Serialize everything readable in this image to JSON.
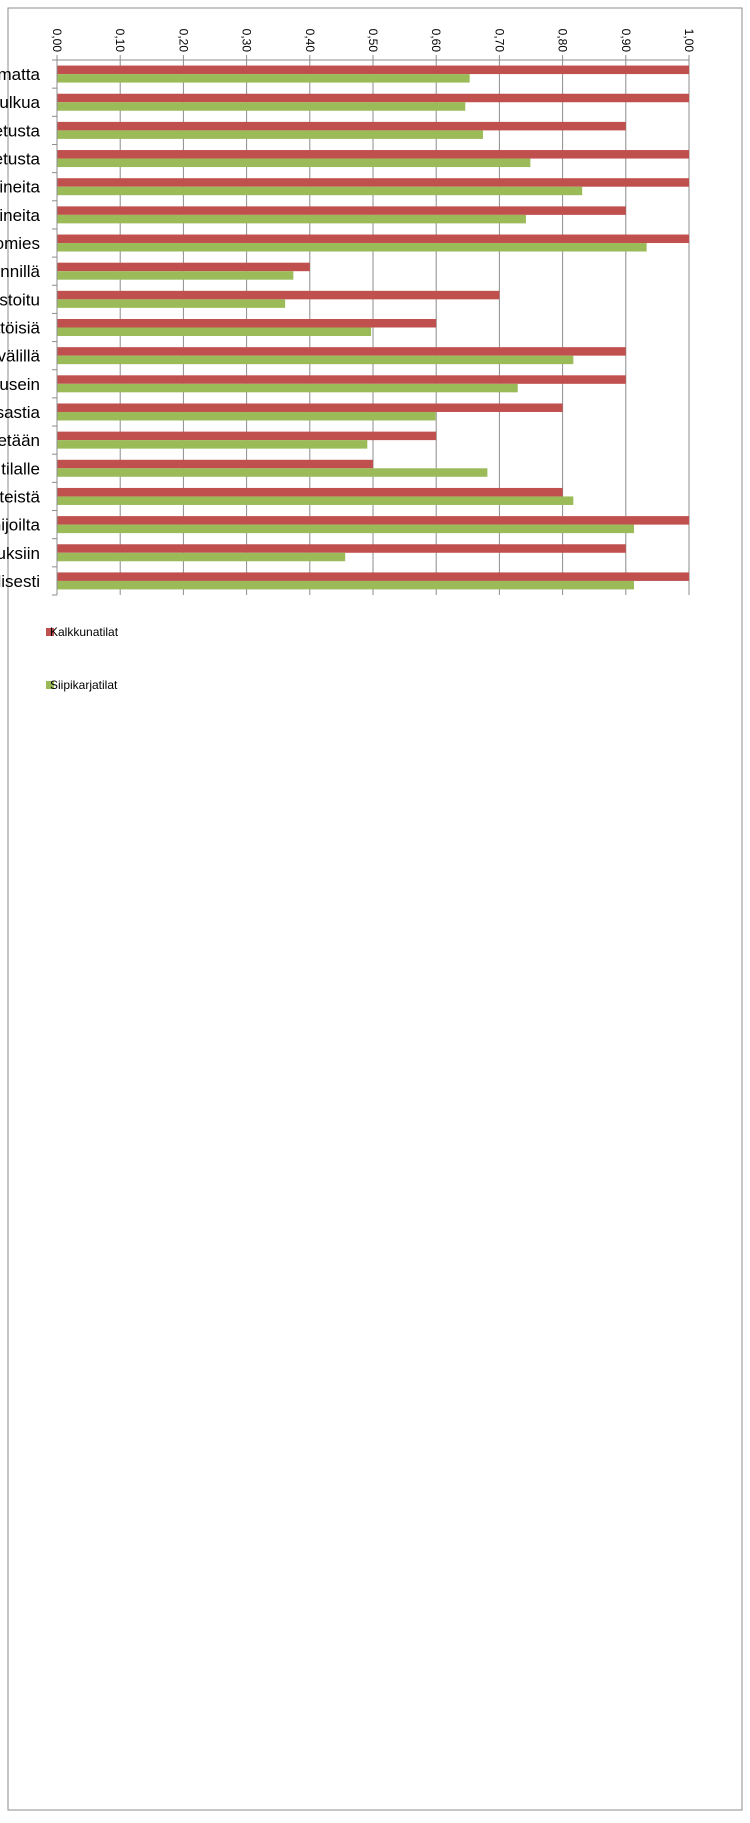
{
  "chart_data": {
    "type": "bar",
    "orientation": "rotated-90-clockwise",
    "grid": true,
    "legend_position": "right",
    "ylim": [
      0,
      1
    ],
    "yticks": [
      "0,00",
      "0,10",
      "0,20",
      "0,30",
      "0,40",
      "0,50",
      "0,60",
      "0,70",
      "0,80",
      "0,90",
      "1,00"
    ],
    "categories": [
      "Tautisulku eli kulkueste, jonka yli ei mennä vaatteita ja jalkineita vaihtamatta",
      "Kaikki eläintilaan menevät ihmiset käyttävät tautisulkua",
      "Tilan oma väki käyttää eläintiloissa suojavaatetusta",
      "Vieraat käyttävät tilan tarjoamaa suojavaatetusta",
      "Tilan oma väki käyttää eläintiloissa erillisiä vain eläintiloissa käytettäviä jalkineita",
      "Vieraat käyttävät tilan tarjoamia jalkineita",
      "Eläintilaan päästetään vain välttämättömät kävijät, kuten eläinlääkäri tai huoltomies",
      "Riittävän usein puhdistettavat jalka-altaat eläintilojen sisäänkäynnillä",
      "Eläintila on osastoitu",
      "Osastot ovat kertatäyttöisiä",
      "Eläintila tai -osasto puhdistetaan huolellisesti kasvatuserien välillä",
      "Rehusiilot ja -linjastot puhdistetaan säännöllisesti riittävän usein",
      "Tilalla on raatojenkeräysastia",
      "Eläinkuljetusauton kuljettajan pääsy eläintilaan estetään",
      "Ostettujen eläinten terveydentila varmistetaan ennen niiden tuomista tilalle",
      "Ostoeläimet hankitaan luotettavista lähteistä",
      "Rehuja ostetaan vain positiivilistan toimijoilta",
      "Osallistutaan säännöllisesti eläintautiaiheisiin koulutuksiin",
      "Seurataan tautitilannetta säännöllisesti"
    ],
    "series": [
      {
        "name": "Kalkkunatilat",
        "color": "#C0504D",
        "values": [
          1.0,
          1.0,
          0.9,
          1.0,
          1.0,
          0.9,
          1.0,
          0.4,
          0.7,
          0.6,
          0.9,
          0.9,
          0.8,
          0.6,
          0.5,
          0.8,
          1.0,
          0.9,
          1.0
        ]
      },
      {
        "name": "Siipikarjatilat",
        "color": "#9BBB59",
        "values": [
          0.653,
          0.646,
          0.674,
          0.749,
          0.831,
          0.742,
          0.933,
          0.374,
          0.361,
          0.497,
          0.817,
          0.729,
          0.599,
          0.491,
          0.681,
          0.817,
          0.913,
          0.456,
          0.913
        ]
      }
    ]
  }
}
